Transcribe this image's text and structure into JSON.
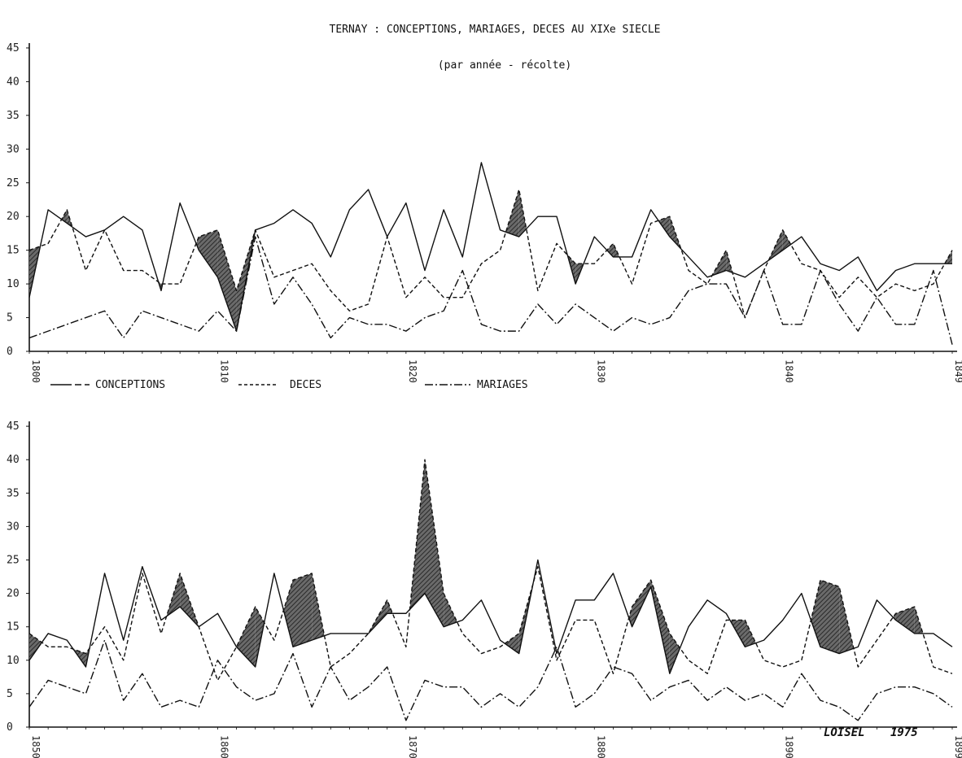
{
  "chart_data": [
    {
      "type": "line",
      "title": "TERNAY : CONCEPTIONS, MARIAGES, DECES AU XIXe SIECLE",
      "subtitle": "(par année - récolte)",
      "ylim": [
        0,
        45
      ],
      "yticks": [
        0,
        5,
        10,
        15,
        20,
        25,
        30,
        35,
        40,
        45
      ],
      "xlim": [
        1800,
        1849
      ],
      "xtick_labels": [
        "1800",
        "1810",
        "1820",
        "1830",
        "1840",
        "1849"
      ],
      "xtick_values": [
        1800,
        1810,
        1820,
        1830,
        1840,
        1849
      ],
      "grid": false,
      "shading": "hatched where DECES exceeds CONCEPTIONS",
      "x": [
        1800,
        1801,
        1802,
        1803,
        1804,
        1805,
        1806,
        1807,
        1808,
        1809,
        1810,
        1811,
        1812,
        1813,
        1814,
        1815,
        1816,
        1817,
        1818,
        1819,
        1820,
        1821,
        1822,
        1823,
        1824,
        1825,
        1826,
        1827,
        1828,
        1829,
        1830,
        1831,
        1832,
        1833,
        1834,
        1835,
        1836,
        1837,
        1838,
        1839,
        1840,
        1841,
        1842,
        1843,
        1844,
        1845,
        1846,
        1847,
        1848,
        1849
      ],
      "series": [
        {
          "name": "CONCEPTIONS",
          "style": "solid",
          "values": [
            8,
            21,
            19,
            17,
            18,
            20,
            18,
            9,
            22,
            15,
            11,
            3,
            18,
            19,
            21,
            19,
            14,
            21,
            24,
            17,
            22,
            12,
            21,
            14,
            28,
            18,
            17,
            20,
            20,
            10,
            17,
            14,
            14,
            21,
            17,
            14,
            11,
            12,
            11,
            13,
            15,
            17,
            13,
            12,
            14,
            9,
            12,
            13,
            13,
            13
          ]
        },
        {
          "name": "DECES",
          "style": "dashed",
          "values": [
            15,
            16,
            21,
            12,
            18,
            12,
            12,
            10,
            10,
            17,
            18,
            9,
            18,
            11,
            12,
            13,
            9,
            6,
            7,
            17,
            8,
            11,
            8,
            8,
            13,
            15,
            24,
            9,
            16,
            13,
            13,
            16,
            10,
            19,
            20,
            12,
            10,
            15,
            5,
            12,
            18,
            13,
            12,
            8,
            11,
            8,
            10,
            9,
            10,
            15
          ]
        },
        {
          "name": "MARIAGES",
          "style": "dash-dot",
          "values": [
            2,
            3,
            4,
            5,
            6,
            2,
            6,
            5,
            4,
            3,
            6,
            3,
            17,
            7,
            11,
            7,
            2,
            5,
            4,
            4,
            3,
            5,
            6,
            12,
            4,
            3,
            3,
            7,
            4,
            7,
            5,
            3,
            5,
            4,
            5,
            9,
            10,
            10,
            5,
            12,
            4,
            4,
            12,
            7,
            3,
            8,
            4,
            4,
            12,
            1
          ]
        }
      ]
    },
    {
      "type": "line",
      "ylim": [
        0,
        45
      ],
      "yticks": [
        0,
        5,
        10,
        15,
        20,
        25,
        30,
        35,
        40,
        45
      ],
      "xlim": [
        1850,
        1899
      ],
      "xtick_labels": [
        "1850",
        "1860",
        "1870",
        "1880",
        "1890",
        "1899"
      ],
      "xtick_values": [
        1850,
        1860,
        1870,
        1880,
        1890,
        1899
      ],
      "grid": false,
      "shading": "hatched where DECES exceeds CONCEPTIONS",
      "x": [
        1850,
        1851,
        1852,
        1853,
        1854,
        1855,
        1856,
        1857,
        1858,
        1859,
        1860,
        1861,
        1862,
        1863,
        1864,
        1865,
        1866,
        1867,
        1868,
        1869,
        1870,
        1871,
        1872,
        1873,
        1874,
        1875,
        1876,
        1877,
        1878,
        1879,
        1880,
        1881,
        1882,
        1883,
        1884,
        1885,
        1886,
        1887,
        1888,
        1889,
        1890,
        1891,
        1892,
        1893,
        1894,
        1895,
        1896,
        1897,
        1898,
        1899
      ],
      "series": [
        {
          "name": "CONCEPTIONS",
          "style": "solid",
          "values": [
            10,
            14,
            13,
            9,
            23,
            13,
            24,
            16,
            18,
            15,
            17,
            12,
            9,
            23,
            12,
            13,
            14,
            14,
            14,
            17,
            17,
            20,
            15,
            16,
            19,
            13,
            11,
            25,
            11,
            19,
            19,
            23,
            15,
            21,
            8,
            15,
            19,
            17,
            12,
            13,
            16,
            20,
            12,
            11,
            12,
            19,
            16,
            14,
            14,
            12
          ]
        },
        {
          "name": "DECES",
          "style": "dashed",
          "values": [
            14,
            12,
            12,
            11,
            15,
            10,
            23,
            14,
            23,
            15,
            7,
            12,
            18,
            13,
            22,
            23,
            9,
            11,
            14,
            19,
            12,
            40,
            20,
            14,
            11,
            12,
            14,
            24,
            10,
            16,
            16,
            8,
            18,
            22,
            14,
            10,
            8,
            16,
            16,
            10,
            9,
            10,
            22,
            21,
            9,
            13,
            17,
            18,
            9,
            8
          ]
        },
        {
          "name": "MARIAGES",
          "style": "dash-dot",
          "values": [
            3,
            7,
            6,
            5,
            13,
            4,
            8,
            3,
            4,
            3,
            10,
            6,
            4,
            5,
            11,
            3,
            9,
            4,
            6,
            9,
            1,
            7,
            6,
            6,
            3,
            5,
            3,
            6,
            12,
            3,
            5,
            9,
            8,
            4,
            6,
            7,
            4,
            6,
            4,
            5,
            3,
            8,
            4,
            3,
            1,
            5,
            6,
            6,
            5,
            3
          ]
        }
      ]
    }
  ],
  "legend": {
    "conceptions": "CONCEPTIONS",
    "deces": "DECES",
    "mariages": "MARIAGES"
  },
  "signature": {
    "name": "LOISEL",
    "year": "1975"
  }
}
